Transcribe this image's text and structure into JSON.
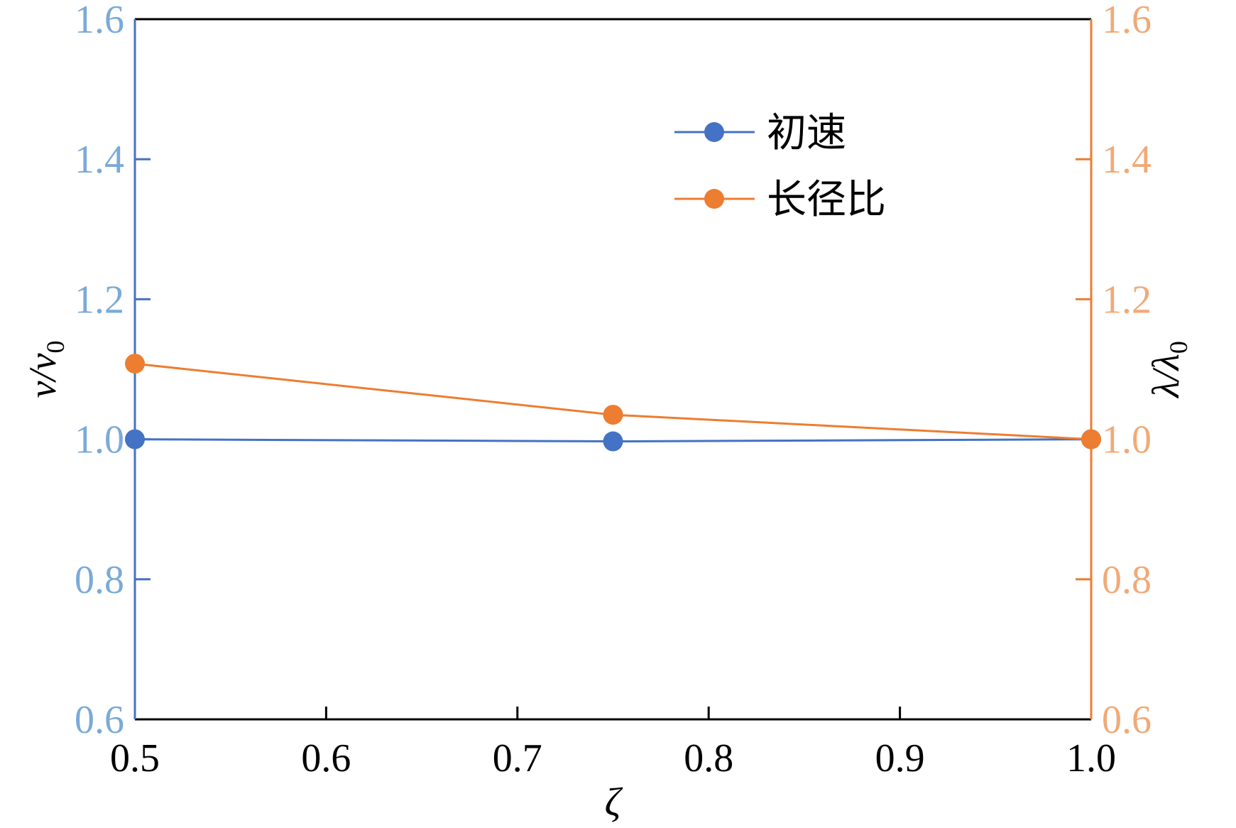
{
  "chart_data": {
    "type": "line",
    "xlabel": "ζ",
    "ylabel_left": {
      "main": "v/v",
      "sub": "0"
    },
    "ylabel_right": {
      "main": "λ/λ",
      "sub": "0"
    },
    "xlim": [
      0.5,
      1.0
    ],
    "ylim_left": [
      0.6,
      1.6
    ],
    "ylim_right": [
      0.6,
      1.6
    ],
    "x_ticks": [
      "0.5",
      "0.6",
      "0.7",
      "0.8",
      "0.9",
      "1.0"
    ],
    "y_ticks_left": [
      "0.6",
      "0.8",
      "1.0",
      "1.2",
      "1.4",
      "1.6"
    ],
    "y_ticks_right": [
      "0.6",
      "0.8",
      "1.0",
      "1.2",
      "1.4",
      "1.6"
    ],
    "grid": false,
    "legend_position": "top-center-right",
    "series": [
      {
        "name": "初速",
        "axis": "left",
        "color": "#4472c4",
        "x": [
          0.5,
          0.75,
          1.0
        ],
        "y": [
          1.0,
          0.997,
          1.0
        ]
      },
      {
        "name": "长径比",
        "axis": "right",
        "color": "#ed7d31",
        "x": [
          0.5,
          0.75,
          1.0
        ],
        "y": [
          1.108,
          1.035,
          1.0
        ]
      }
    ],
    "colors": {
      "left_axis": "#4472c4",
      "left_ticks": "#7aaad8",
      "right_axis": "#ed7d31",
      "right_ticks": "#f0aa78",
      "frame": "#000000"
    }
  }
}
